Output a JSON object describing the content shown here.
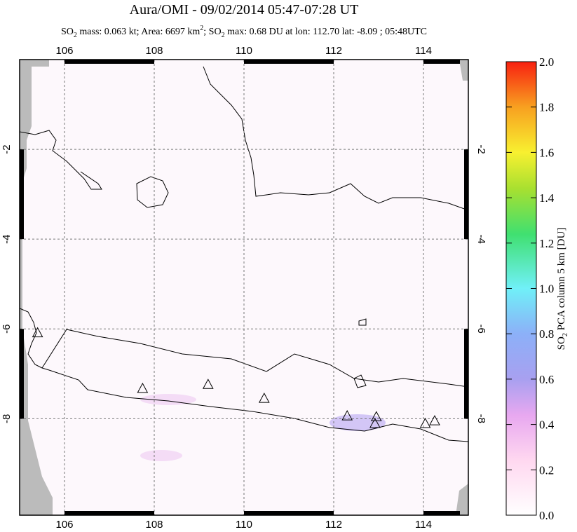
{
  "title": "Aura/OMI - 09/02/2014 05:47-07:28 UT",
  "subtitle": [
    "SO",
    "2",
    " mass: 0.063 kt; Area: 6697 km",
    "2",
    "; SO",
    "2",
    " max: 0.68 DU at lon: 112.70 lat: -8.09 ; 05:48UTC"
  ],
  "map": {
    "xlim": [
      105,
      115
    ],
    "ylim": [
      -10.15,
      0
    ],
    "xticks": [
      106,
      108,
      110,
      112,
      114
    ],
    "yticks": [
      -2,
      -4,
      -6,
      -8
    ],
    "grid": true,
    "volcanoes": {
      "lon": [
        105.4,
        107.74,
        109.2,
        110.45,
        112.3,
        112.95,
        112.92,
        114.04,
        114.25
      ],
      "lat": [
        -6.1,
        -7.34,
        -7.25,
        -7.56,
        -7.95,
        -7.97,
        -8.12,
        -8.12,
        -8.06
      ]
    }
  },
  "colorbar": {
    "label": [
      "SO",
      "2",
      " PCA column 5 km [DU]"
    ],
    "lim": [
      0,
      2
    ],
    "ticks": [
      {
        "value": 0,
        "label": "0.0"
      },
      0.2,
      0.4,
      0.6,
      0.8,
      {
        "value": 1,
        "label": "1.0"
      },
      1.2,
      1.4,
      1.6,
      1.8,
      {
        "value": 2,
        "label": "2.0"
      }
    ]
  }
}
